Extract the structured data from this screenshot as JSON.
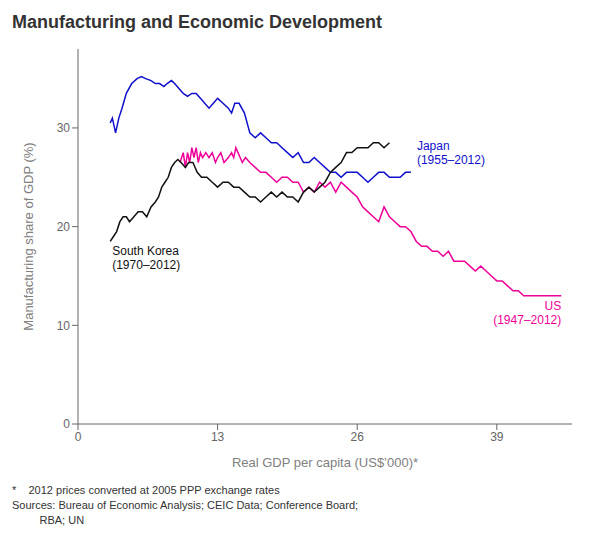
{
  "chart_data": {
    "type": "line",
    "title": "Manufacturing and Economic Development",
    "xlabel": "Real GDP per capita (US$’000)*",
    "ylabel": "Manufacturing share of GDP (%)",
    "footnotes": [
      "*    2012 prices converted at 2005 PPP exchange rates",
      "Sources: Bureau of Economic Analysis; CEIC Data; Conference Board;",
      "         RBA; UN"
    ],
    "xlim": [
      0,
      46
    ],
    "ylim": [
      0,
      38
    ],
    "xticks": [
      0,
      13,
      26,
      39
    ],
    "yticks": [
      0,
      10,
      20,
      30
    ],
    "grid": false,
    "series": [
      {
        "name": "Japan\n(1955–2012)",
        "color": "#1010CC",
        "x": [
          3.0,
          3.2,
          3.5,
          3.8,
          4.1,
          4.5,
          5.0,
          5.5,
          5.9,
          6.3,
          6.8,
          7.2,
          7.6,
          8.0,
          8.3,
          8.7,
          9.0,
          9.4,
          9.8,
          10.2,
          10.6,
          11.0,
          11.4,
          11.8,
          12.2,
          12.6,
          13.0,
          13.5,
          14.0,
          14.3,
          14.6,
          15.0,
          15.5,
          16.0,
          16.5,
          17.0,
          17.5,
          18.0,
          18.5,
          19.0,
          19.5,
          20.0,
          20.5,
          21.0,
          21.5,
          22.0,
          22.5,
          23.0,
          23.5,
          24.0,
          24.5,
          25.0,
          25.5,
          26.0,
          26.5,
          27.0,
          27.5,
          28.0,
          28.5,
          29.0,
          29.5,
          30.0,
          30.5,
          31.0
        ],
        "values": [
          30.5,
          31.0,
          29.5,
          31.0,
          32.0,
          33.5,
          34.5,
          35.0,
          35.2,
          35.0,
          34.8,
          34.5,
          34.5,
          34.2,
          34.5,
          34.8,
          34.5,
          34.0,
          33.5,
          33.2,
          33.5,
          33.5,
          33.0,
          32.5,
          32.0,
          32.5,
          33.0,
          32.5,
          32.0,
          31.5,
          32.5,
          32.5,
          31.5,
          29.5,
          29.0,
          29.5,
          29.0,
          28.5,
          28.5,
          28.0,
          27.5,
          27.0,
          27.5,
          26.5,
          26.5,
          27.0,
          26.5,
          26.0,
          25.5,
          25.5,
          25.0,
          25.5,
          25.5,
          25.5,
          25.0,
          24.5,
          25.0,
          25.5,
          25.5,
          25.0,
          25.0,
          25.0,
          25.5,
          25.5
        ]
      },
      {
        "name": "US\n(1947–2012)",
        "color": "#EE0099",
        "x": [
          9.5,
          9.8,
          10.0,
          10.2,
          10.4,
          10.6,
          10.8,
          11.0,
          11.2,
          11.4,
          11.6,
          11.9,
          12.2,
          12.5,
          12.8,
          13.0,
          13.3,
          13.6,
          14.0,
          14.3,
          14.5,
          14.7,
          14.9,
          15.1,
          15.3,
          15.6,
          16.0,
          16.5,
          17.0,
          17.5,
          18.0,
          18.5,
          19.0,
          19.5,
          20.0,
          20.5,
          21.0,
          21.5,
          22.0,
          22.5,
          23.0,
          23.5,
          24.0,
          24.5,
          25.0,
          25.5,
          26.0,
          26.5,
          27.0,
          27.5,
          28.0,
          28.5,
          29.0,
          29.5,
          30.0,
          30.5,
          31.0,
          31.5,
          32.0,
          32.5,
          33.0,
          33.5,
          34.0,
          34.5,
          35.0,
          35.5,
          36.0,
          36.5,
          37.0,
          37.5,
          38.0,
          38.5,
          39.0,
          39.5,
          40.0,
          40.5,
          41.0,
          41.5,
          42.0,
          43.0,
          44.0,
          44.5,
          45.0
        ],
        "values": [
          26.5,
          27.5,
          26.0,
          27.5,
          26.5,
          28.0,
          27.0,
          28.0,
          26.5,
          27.5,
          27.0,
          27.5,
          27.0,
          27.5,
          26.5,
          27.0,
          27.5,
          26.5,
          27.0,
          27.5,
          27.0,
          28.0,
          27.5,
          27.0,
          26.5,
          27.0,
          26.5,
          26.0,
          25.5,
          25.5,
          25.0,
          24.5,
          25.0,
          25.0,
          24.5,
          24.5,
          23.5,
          24.0,
          23.5,
          24.5,
          24.0,
          24.5,
          23.5,
          24.5,
          24.0,
          23.5,
          23.0,
          22.0,
          21.5,
          21.0,
          20.5,
          22.0,
          21.0,
          20.5,
          20.0,
          20.0,
          19.5,
          18.5,
          18.0,
          18.0,
          17.5,
          17.5,
          17.0,
          17.5,
          16.5,
          16.5,
          16.5,
          16.0,
          15.5,
          16.0,
          15.5,
          15.0,
          14.5,
          14.5,
          14.0,
          13.5,
          13.5,
          13.0,
          13.0,
          13.0,
          13.0,
          13.0,
          13.0
        ]
      },
      {
        "name": "South Korea\n(1970–2012)",
        "color": "#111111",
        "x": [
          3.0,
          3.3,
          3.6,
          3.9,
          4.2,
          4.5,
          4.8,
          5.2,
          5.6,
          6.0,
          6.4,
          6.8,
          7.2,
          7.5,
          7.8,
          8.1,
          8.4,
          8.7,
          9.0,
          9.3,
          9.6,
          10.0,
          10.3,
          10.7,
          11.1,
          11.5,
          12.0,
          12.5,
          13.0,
          13.5,
          14.0,
          14.5,
          15.0,
          15.5,
          16.0,
          16.5,
          17.0,
          17.5,
          18.0,
          18.5,
          19.0,
          19.5,
          20.0,
          20.5,
          21.0,
          21.5,
          22.0,
          22.5,
          23.0,
          23.5,
          24.0,
          24.5,
          25.0,
          25.5,
          26.0,
          26.5,
          27.0,
          27.5,
          28.0,
          28.5,
          29.0
        ],
        "values": [
          18.5,
          19.0,
          19.5,
          20.5,
          21.0,
          21.0,
          20.5,
          21.0,
          21.5,
          21.5,
          21.0,
          22.0,
          22.5,
          23.0,
          24.0,
          24.5,
          25.0,
          26.0,
          26.5,
          26.8,
          26.5,
          26.0,
          26.5,
          26.5,
          25.5,
          25.0,
          25.0,
          24.5,
          24.0,
          24.5,
          24.5,
          24.0,
          24.0,
          23.5,
          23.0,
          23.0,
          22.5,
          23.0,
          23.5,
          23.0,
          23.5,
          23.0,
          23.0,
          22.5,
          23.5,
          24.0,
          23.5,
          24.0,
          24.5,
          25.5,
          26.0,
          26.5,
          27.5,
          27.5,
          28.0,
          28.0,
          28.0,
          28.5,
          28.5,
          28.0,
          28.5
        ]
      }
    ]
  }
}
